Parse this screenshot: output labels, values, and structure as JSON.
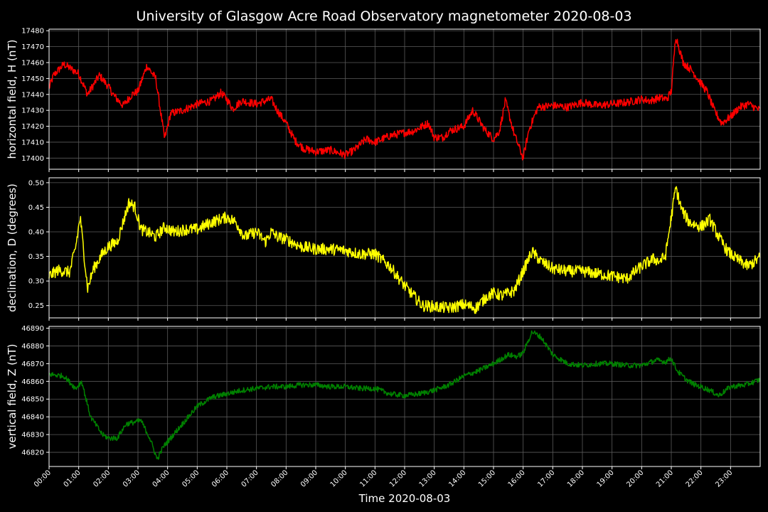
{
  "chart_data": {
    "type": "line",
    "title": "University of Glasgow Acre Road Observatory magnetometer 2020-08-03",
    "xlabel": "Time 2020-08-03",
    "x_ticks": [
      "00:00",
      "01:00",
      "02:00",
      "03:00",
      "04:00",
      "05:00",
      "06:00",
      "07:00",
      "08:00",
      "09:00",
      "10:00",
      "11:00",
      "12:00",
      "13:00",
      "14:00",
      "15:00",
      "16:00",
      "17:00",
      "18:00",
      "19:00",
      "20:00",
      "21:00",
      "22:00",
      "23:00"
    ],
    "grid": true,
    "panels": [
      {
        "ylabel": "horizontal field, H (nT)",
        "color": "#ff0000",
        "ylim": [
          17393,
          17481
        ],
        "yticks": [
          17400,
          17410,
          17420,
          17430,
          17440,
          17450,
          17460,
          17470,
          17480
        ],
        "noise": 2.5,
        "x": [
          0,
          0.15,
          0.5,
          1.0,
          1.3,
          1.7,
          2.0,
          2.2,
          2.5,
          2.8,
          3.0,
          3.3,
          3.6,
          3.75,
          3.9,
          4.1,
          4.5,
          5.0,
          5.5,
          5.8,
          6.0,
          6.2,
          6.5,
          7.0,
          7.3,
          7.5,
          7.7,
          8.0,
          8.3,
          8.6,
          9.0,
          9.5,
          10.0,
          10.3,
          10.7,
          11.0,
          11.5,
          12.0,
          12.3,
          12.5,
          12.8,
          13.0,
          13.3,
          13.5,
          14.0,
          14.3,
          14.7,
          15.0,
          15.2,
          15.4,
          15.7,
          16.0,
          16.2,
          16.5,
          17.0,
          17.5,
          18.0,
          18.5,
          19.0,
          19.5,
          20.0,
          20.3,
          20.6,
          20.85,
          21.0,
          21.15,
          21.4,
          21.7,
          22.0,
          22.2,
          22.45,
          22.7,
          23.0,
          23.3,
          23.6,
          24.0
        ],
        "y": [
          17444,
          17452,
          17459,
          17453,
          17440,
          17452,
          17445,
          17439,
          17433,
          17440,
          17442,
          17458,
          17450,
          17431,
          17412,
          17428,
          17430,
          17434,
          17436,
          17441,
          17437,
          17431,
          17436,
          17434,
          17436,
          17437,
          17430,
          17422,
          17411,
          17406,
          17404,
          17405,
          17402,
          17405,
          17412,
          17410,
          17414,
          17416,
          17417,
          17419,
          17422,
          17413,
          17413,
          17417,
          17420,
          17430,
          17418,
          17412,
          17417,
          17436,
          17415,
          17400,
          17418,
          17432,
          17433,
          17432,
          17435,
          17433,
          17434,
          17435,
          17437,
          17436,
          17438,
          17437,
          17442,
          17477,
          17460,
          17455,
          17447,
          17442,
          17430,
          17422,
          17426,
          17432,
          17434,
          17430
        ]
      },
      {
        "ylabel": "declination, D (degrees)",
        "color": "#ffff00",
        "ylim": [
          0.225,
          0.51
        ],
        "yticks": [
          0.25,
          0.3,
          0.35,
          0.4,
          0.45,
          0.5
        ],
        "noise": 0.012,
        "x": [
          0,
          0.3,
          0.7,
          0.9,
          1.05,
          1.3,
          1.5,
          1.8,
          2.0,
          2.3,
          2.7,
          2.9,
          3.1,
          3.3,
          3.6,
          3.9,
          4.2,
          4.6,
          5.0,
          5.5,
          6.0,
          6.3,
          6.6,
          7.0,
          7.3,
          7.5,
          7.7,
          8.0,
          8.5,
          9.0,
          9.5,
          10.0,
          10.5,
          11.0,
          11.5,
          12.0,
          12.3,
          12.6,
          13.0,
          13.5,
          14.0,
          14.4,
          14.8,
          15.0,
          15.3,
          15.7,
          16.0,
          16.3,
          16.6,
          17.0,
          17.5,
          18.0,
          18.5,
          19.0,
          19.5,
          20.0,
          20.4,
          20.6,
          20.8,
          21.0,
          21.15,
          21.35,
          21.6,
          22.0,
          22.3,
          22.6,
          22.9,
          23.2,
          23.6,
          24.0
        ],
        "y": [
          0.31,
          0.322,
          0.318,
          0.37,
          0.43,
          0.285,
          0.325,
          0.355,
          0.37,
          0.38,
          0.46,
          0.45,
          0.405,
          0.4,
          0.39,
          0.41,
          0.4,
          0.405,
          0.405,
          0.42,
          0.43,
          0.42,
          0.39,
          0.4,
          0.38,
          0.4,
          0.39,
          0.385,
          0.37,
          0.365,
          0.365,
          0.362,
          0.355,
          0.355,
          0.33,
          0.29,
          0.27,
          0.25,
          0.248,
          0.245,
          0.252,
          0.245,
          0.27,
          0.275,
          0.27,
          0.28,
          0.32,
          0.36,
          0.34,
          0.325,
          0.32,
          0.32,
          0.315,
          0.31,
          0.305,
          0.33,
          0.345,
          0.34,
          0.35,
          0.43,
          0.49,
          0.445,
          0.42,
          0.41,
          0.425,
          0.39,
          0.36,
          0.345,
          0.33,
          0.348
        ]
      },
      {
        "ylabel": "vertical field, Z (nT)",
        "color": "#008000",
        "ylim": [
          46812,
          46891
        ],
        "yticks": [
          46820,
          46830,
          46840,
          46850,
          46860,
          46870,
          46880,
          46890
        ],
        "noise": 1.5,
        "x": [
          0,
          0.5,
          0.9,
          1.1,
          1.4,
          1.8,
          2.0,
          2.3,
          2.6,
          2.9,
          3.1,
          3.4,
          3.65,
          3.85,
          4.2,
          4.6,
          5.0,
          5.5,
          6.0,
          6.5,
          7.0,
          7.5,
          8.0,
          8.5,
          9.0,
          9.5,
          10.0,
          10.5,
          11.0,
          11.5,
          12.0,
          12.5,
          13.0,
          13.5,
          14.0,
          14.5,
          15.0,
          15.5,
          15.8,
          16.0,
          16.3,
          16.6,
          17.0,
          17.5,
          18.0,
          18.5,
          19.0,
          19.5,
          20.0,
          20.5,
          20.8,
          21.0,
          21.2,
          21.5,
          21.8,
          22.0,
          22.3,
          22.6,
          23.0,
          23.5,
          24.0
        ],
        "y": [
          46864,
          46863,
          46856,
          46860,
          46840,
          46830,
          46828,
          46828,
          46836,
          46837,
          46838,
          46828,
          46816,
          46823,
          46830,
          46838,
          46846,
          46851,
          46853,
          46855,
          46856,
          46857,
          46857,
          46858,
          46858,
          46857,
          46857,
          46856,
          46856,
          46853,
          46852,
          46853,
          46855,
          46858,
          46863,
          46866,
          46870,
          46875,
          46874,
          46876,
          46888,
          46885,
          46875,
          46870,
          46869,
          46870,
          46870,
          46869,
          46869,
          46872,
          46871,
          46873,
          46866,
          46861,
          46858,
          46857,
          46855,
          46852,
          46857,
          46858,
          46861
        ]
      }
    ]
  }
}
